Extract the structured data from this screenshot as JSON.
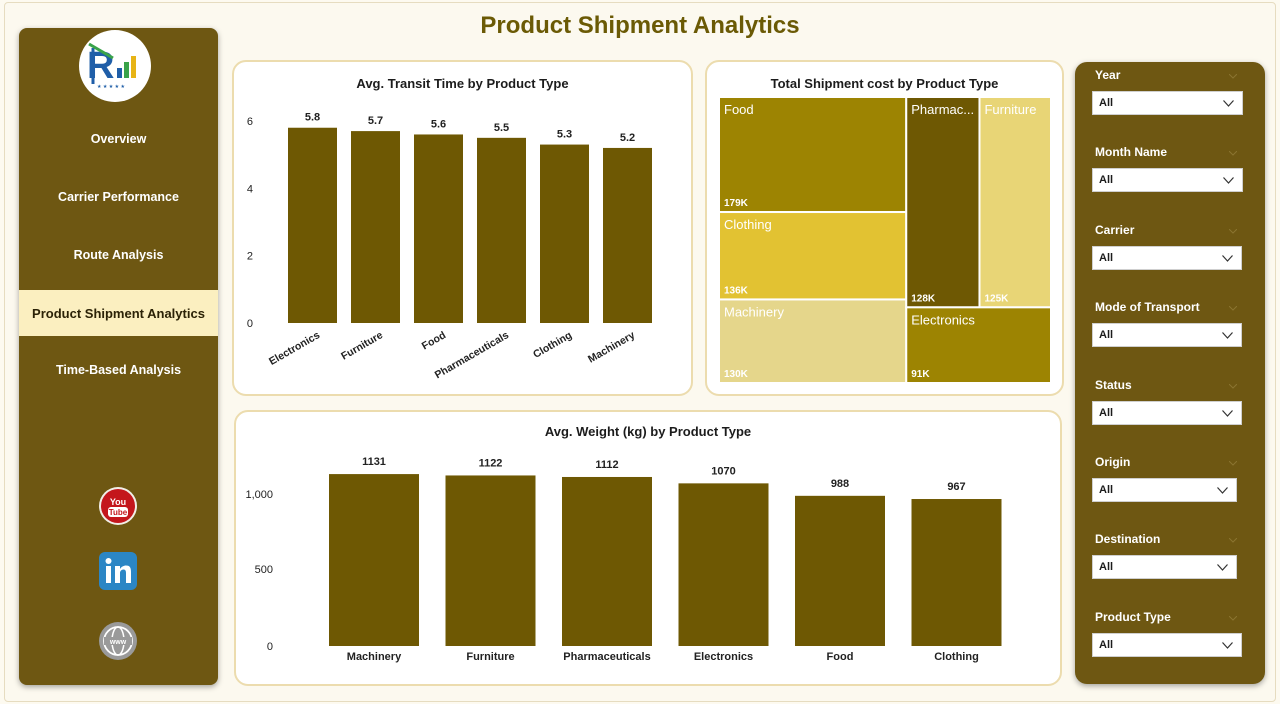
{
  "page_title": "Product Shipment Analytics",
  "nav": [
    {
      "label": "Overview",
      "active": false
    },
    {
      "label": "Carrier Performance",
      "active": false
    },
    {
      "label": "Route Analysis",
      "active": false
    },
    {
      "label": "Product Shipment Analytics",
      "active": true
    },
    {
      "label": "Time-Based Analysis",
      "active": false
    }
  ],
  "social": [
    "youtube-icon",
    "linkedin-icon",
    "globe-icon"
  ],
  "logo": {
    "colors": [
      "#1f5ea8",
      "#3aa34a",
      "#e7b416"
    ]
  },
  "colors": {
    "sidebar": "#6e5712",
    "bar": "#6e5803",
    "title": "#6b5a05",
    "active_nav": "#fbefc0",
    "treemap": [
      "#9d8402",
      "#e2c232",
      "#e5d68b",
      "#6e5803",
      "#e8d576"
    ]
  },
  "charts": {
    "transit": {
      "title": "Avg. Transit Time by Product Type",
      "chart_data": {
        "type": "bar",
        "categories": [
          "Electronics",
          "Furniture",
          "Food",
          "Pharmaceuticals",
          "Clothing",
          "Machinery"
        ],
        "values": [
          5.8,
          5.7,
          5.6,
          5.5,
          5.3,
          5.2
        ],
        "value_labels": [
          "5.8",
          "5.7",
          "5.6",
          "5.5",
          "5.3",
          "5.2"
        ],
        "yticks": [
          "0",
          "2",
          "4",
          "6"
        ],
        "ylim": [
          0,
          6
        ],
        "grid": false
      }
    },
    "cost": {
      "title": "Total Shipment cost by Product Type",
      "chart_data": {
        "type": "treemap",
        "items": [
          {
            "name": "Food",
            "value_label": "179K",
            "value": 179
          },
          {
            "name": "Clothing",
            "value_label": "136K",
            "value": 136
          },
          {
            "name": "Machinery",
            "value_label": "130K",
            "value": 130
          },
          {
            "name": "Pharmac...",
            "value_label": "128K",
            "value": 128
          },
          {
            "name": "Furniture",
            "value_label": "125K",
            "value": 125
          },
          {
            "name": "Electronics",
            "value_label": "91K",
            "value": 91
          }
        ]
      }
    },
    "weight": {
      "title": "Avg. Weight (kg) by Product Type",
      "chart_data": {
        "type": "bar",
        "categories": [
          "Machinery",
          "Furniture",
          "Pharmaceuticals",
          "Electronics",
          "Food",
          "Clothing"
        ],
        "values": [
          1131,
          1122,
          1112,
          1070,
          988,
          967
        ],
        "value_labels": [
          "1131",
          "1122",
          "1112",
          "1070",
          "988",
          "967"
        ],
        "yticks": [
          "0",
          "500",
          "1,000"
        ],
        "ylim": [
          0,
          1200
        ],
        "grid": false
      }
    }
  },
  "filters": [
    {
      "label": "Year",
      "value": "All"
    },
    {
      "label": "Month Name",
      "value": "All"
    },
    {
      "label": "Carrier",
      "value": "All"
    },
    {
      "label": "Mode of Transport",
      "value": "All"
    },
    {
      "label": "Status",
      "value": "All"
    },
    {
      "label": "Origin",
      "value": "All"
    },
    {
      "label": "Destination",
      "value": "All"
    },
    {
      "label": "Product Type",
      "value": "All"
    }
  ]
}
